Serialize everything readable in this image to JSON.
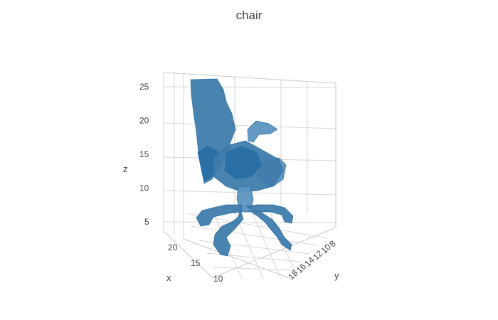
{
  "chart_data": {
    "type": "mesh3d",
    "title": "chair",
    "axes": {
      "x": {
        "label": "x",
        "ticks": [
          10,
          15,
          20
        ]
      },
      "y": {
        "label": "y",
        "ticks": [
          8,
          10,
          12,
          14,
          16,
          18
        ]
      },
      "z": {
        "label": "z",
        "ticks": [
          5,
          10,
          15,
          20,
          25
        ]
      }
    },
    "grid": true,
    "colors": {
      "mesh": "#3f7cac",
      "mesh_dark": "#2a6ea6",
      "mesh_light": "#5b93bf"
    }
  }
}
